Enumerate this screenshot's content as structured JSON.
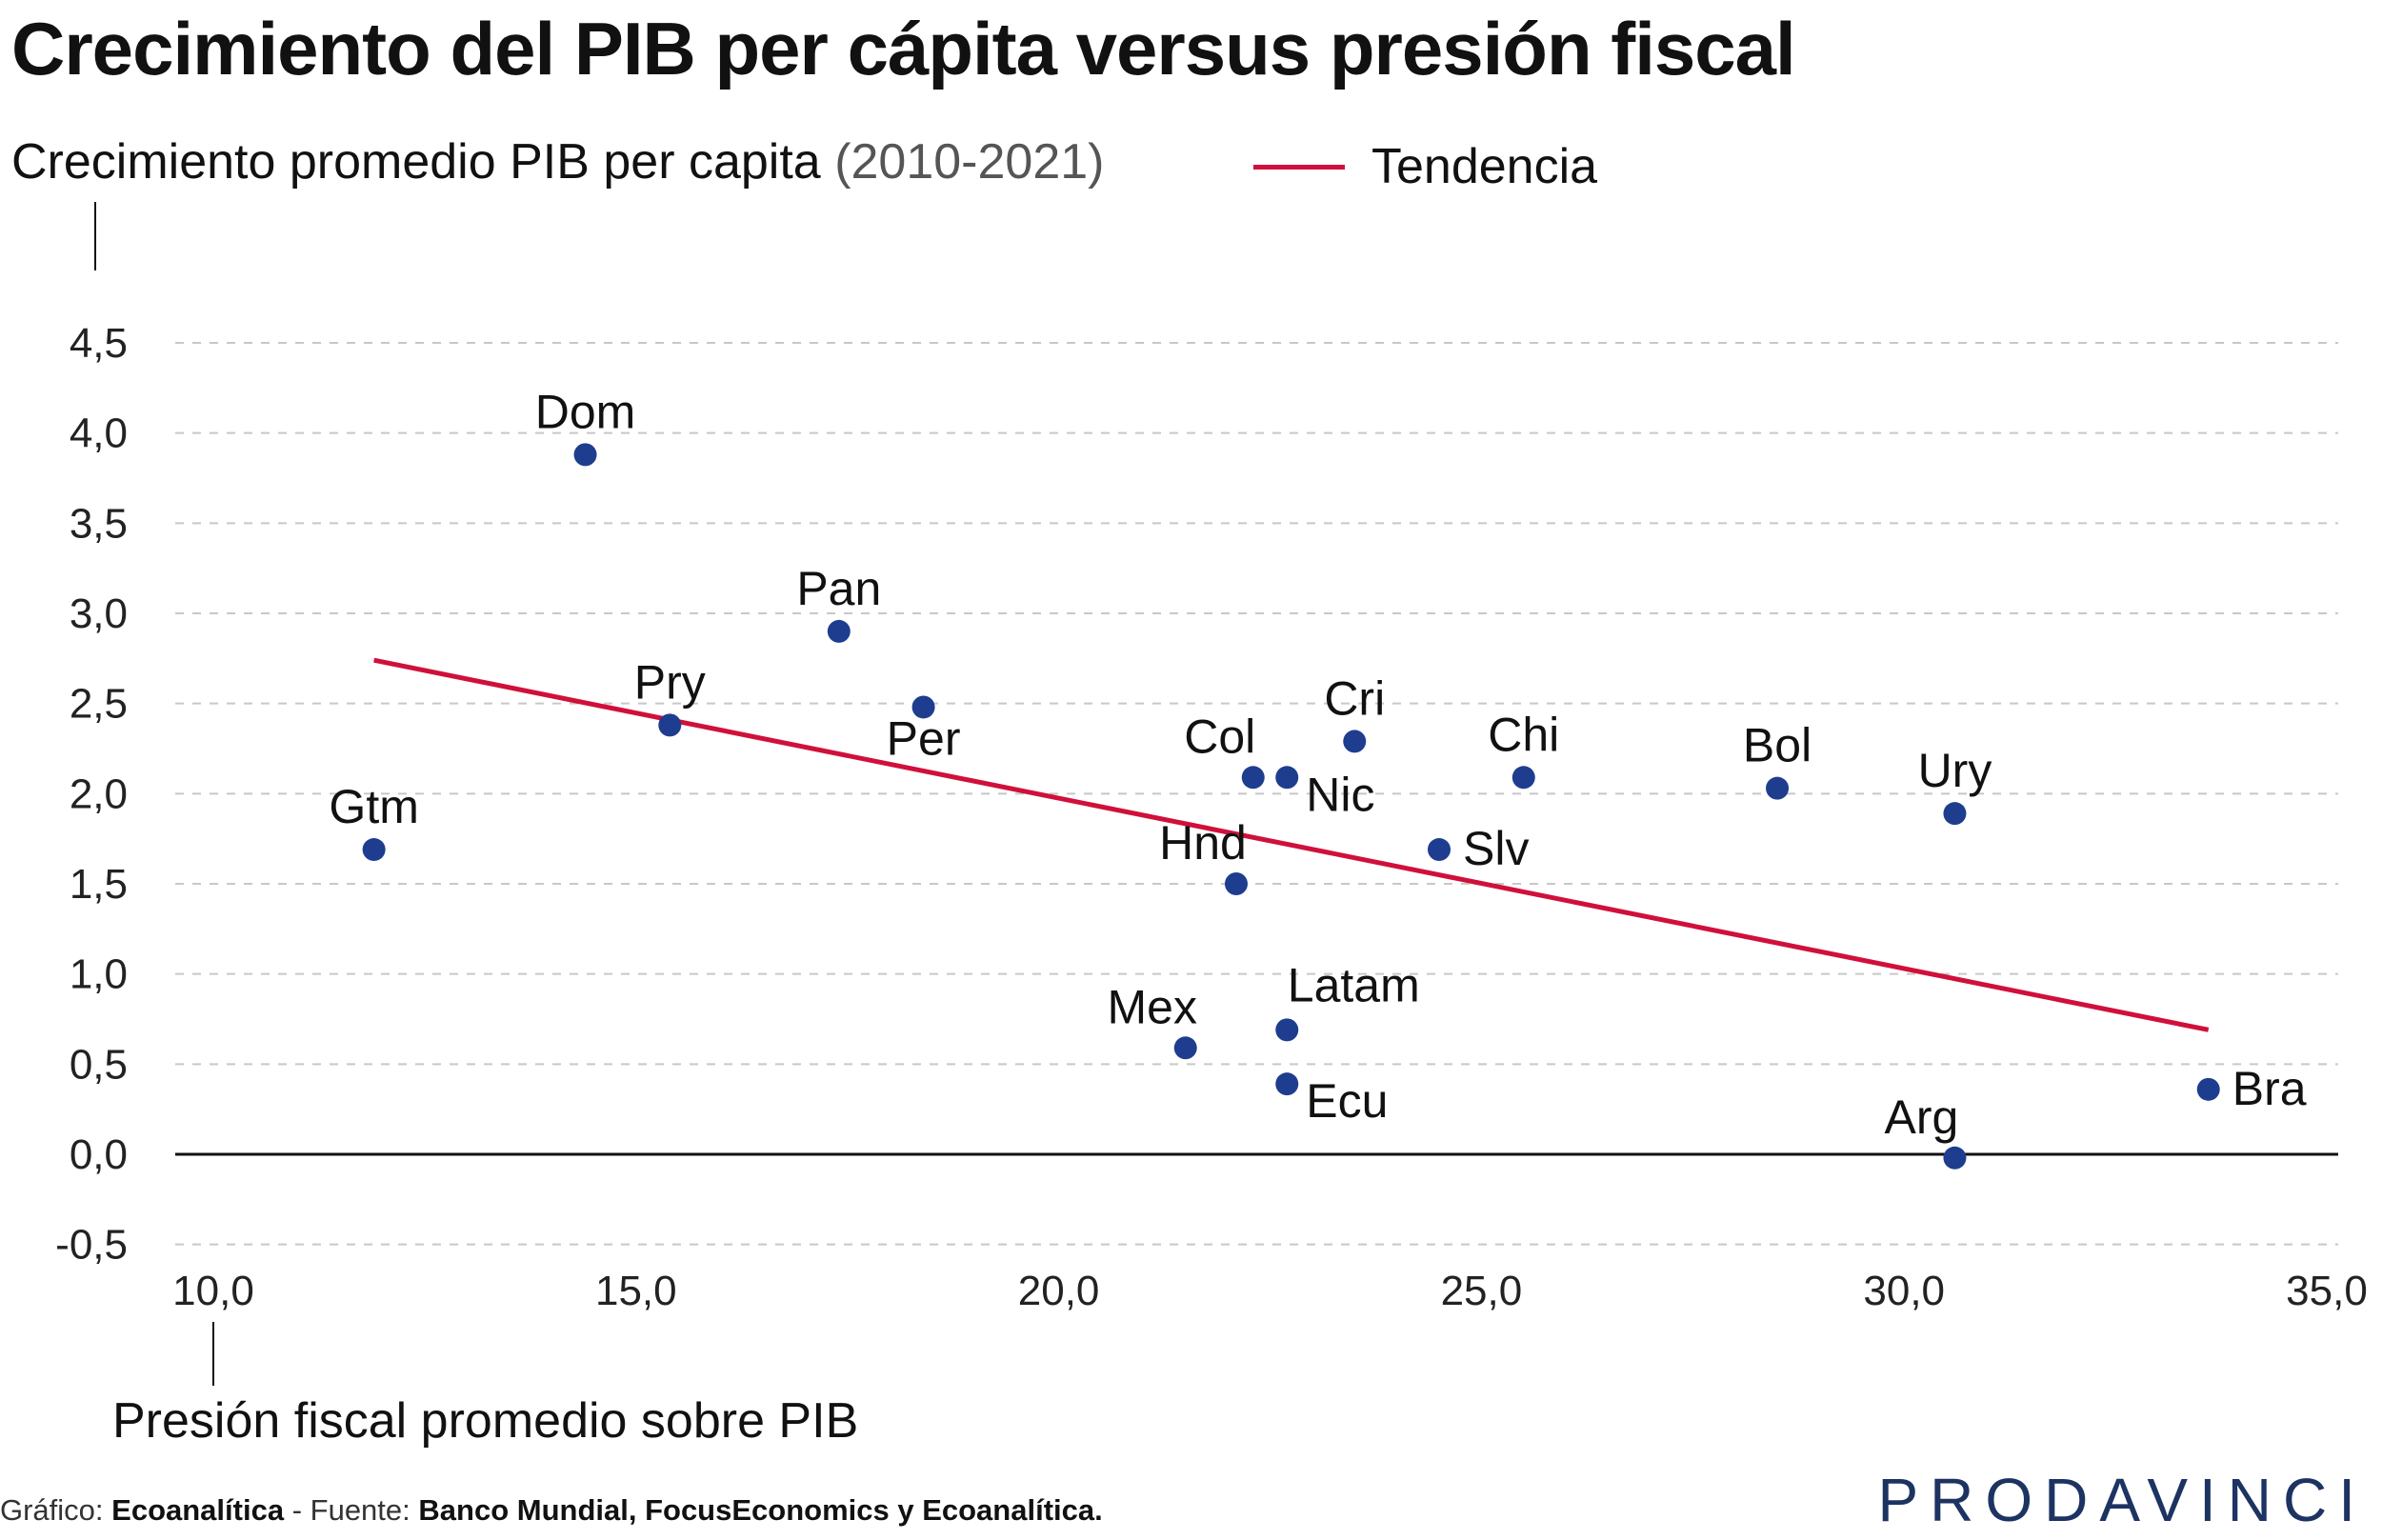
{
  "title": "Crecimiento del PIB per cápita versus presión fiscal",
  "y_axis_title": "Crecimiento promedio PIB per capita",
  "y_axis_period": "(2010-2021)",
  "x_axis_title": "Presión fiscal promedio sobre PIB",
  "legend_label": "Tendencia",
  "colors": {
    "points": "#1f3d8f",
    "trend": "#d0103a",
    "grid": "#c8c8c8",
    "zero_line": "#111111"
  },
  "footer": {
    "prefix": "Gráfico:",
    "author": "Ecoanalítica",
    "sep": "- Fuente:",
    "source": "Banco Mundial, FocusEconomics y Ecoanalítica."
  },
  "logo": "PRODAVINCI",
  "chart_data": {
    "type": "scatter",
    "title": "Crecimiento del PIB per cápita versus presión fiscal",
    "xlabel": "Presión fiscal promedio sobre PIB",
    "ylabel": "Crecimiento promedio PIB per capita (2010-2021)",
    "xlim": [
      9.0,
      35.5
    ],
    "ylim": [
      -0.5,
      4.5
    ],
    "x_ticks": [
      "10,0",
      "15,0",
      "20,0",
      "25,0",
      "30,0",
      "35,0"
    ],
    "x_tick_values": [
      10,
      15,
      20,
      25,
      30,
      35
    ],
    "y_ticks": [
      "4,5",
      "4,0",
      "3,5",
      "3,0",
      "2,5",
      "2,0",
      "1,5",
      "1,0",
      "0,5",
      "0,0",
      "-0,5"
    ],
    "y_tick_values": [
      4.5,
      4.0,
      3.5,
      3.0,
      2.5,
      2.0,
      1.5,
      1.0,
      0.5,
      0.0,
      -0.5
    ],
    "grid": true,
    "legend": "top",
    "points": [
      {
        "label": "Dom",
        "x": 14.4,
        "y": 3.88,
        "label_pos": "above"
      },
      {
        "label": "Pan",
        "x": 17.4,
        "y": 2.9,
        "label_pos": "above"
      },
      {
        "label": "Pry",
        "x": 15.4,
        "y": 2.38,
        "label_pos": "above"
      },
      {
        "label": "Per",
        "x": 18.4,
        "y": 2.48,
        "label_pos": "below"
      },
      {
        "label": "Gtm",
        "x": 11.9,
        "y": 1.69,
        "label_pos": "above"
      },
      {
        "label": "Col",
        "x": 22.3,
        "y": 2.09,
        "label_pos": "above-left"
      },
      {
        "label": "Nic",
        "x": 22.7,
        "y": 2.09,
        "label_pos": "below-right"
      },
      {
        "label": "Cri",
        "x": 23.5,
        "y": 2.29,
        "label_pos": "above"
      },
      {
        "label": "Chi",
        "x": 25.5,
        "y": 2.09,
        "label_pos": "above"
      },
      {
        "label": "Hnd",
        "x": 22.1,
        "y": 1.5,
        "label_pos": "above-left"
      },
      {
        "label": "Slv",
        "x": 24.5,
        "y": 1.69,
        "label_pos": "right"
      },
      {
        "label": "Bol",
        "x": 28.5,
        "y": 2.03,
        "label_pos": "above"
      },
      {
        "label": "Ury",
        "x": 30.6,
        "y": 1.89,
        "label_pos": "above"
      },
      {
        "label": "Mex",
        "x": 21.5,
        "y": 0.59,
        "label_pos": "above-left"
      },
      {
        "label": "Latam",
        "x": 22.7,
        "y": 0.69,
        "label_pos": "above-right"
      },
      {
        "label": "Ecu",
        "x": 22.7,
        "y": 0.39,
        "label_pos": "below-right"
      },
      {
        "label": "Arg",
        "x": 30.6,
        "y": -0.02,
        "label_pos": "above-left"
      },
      {
        "label": "Bra",
        "x": 33.6,
        "y": 0.36,
        "label_pos": "right"
      }
    ],
    "trend": {
      "name": "Tendencia",
      "x": [
        11.9,
        33.6
      ],
      "y": [
        2.74,
        0.69
      ]
    }
  }
}
